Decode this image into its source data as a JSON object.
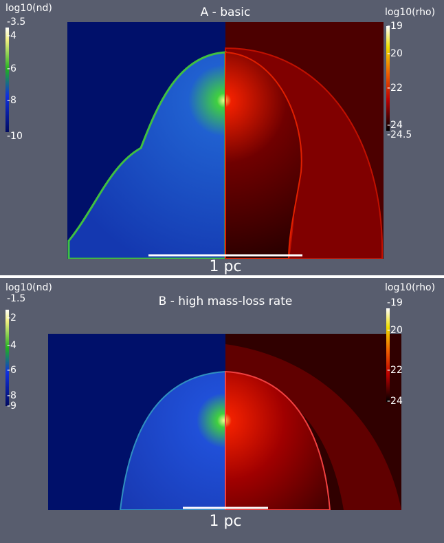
{
  "panels": [
    {
      "title": "A - basic",
      "scalebar": "1 pc",
      "left_colorbar": {
        "label": "log10(nd)",
        "ticks": [
          "-3.5",
          "-4",
          "-6",
          "-8",
          "-10"
        ]
      },
      "right_colorbar": {
        "label": "log10(rho)",
        "ticks": [
          "-19",
          "-20",
          "-22",
          "-24",
          "-24.5"
        ]
      }
    },
    {
      "title": "B - high mass-loss rate",
      "scalebar": "1 pc",
      "left_colorbar": {
        "label": "log10(nd)",
        "ticks": [
          "-1.5",
          "-2",
          "-4",
          "-6",
          "-8",
          "-9"
        ]
      },
      "right_colorbar": {
        "label": "log10(rho)",
        "ticks": [
          "-19",
          "-20",
          "-22",
          "-24"
        ]
      }
    }
  ]
}
